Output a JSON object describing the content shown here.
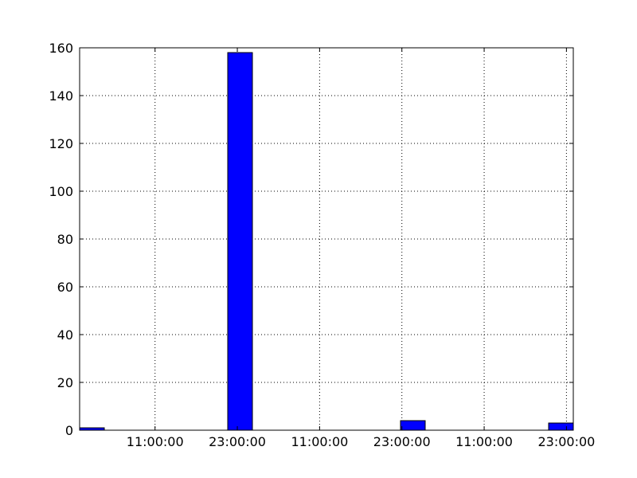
{
  "chart_data": {
    "type": "bar",
    "title": "",
    "xlabel": "",
    "ylabel": "",
    "x_tick_labels": [
      "11:00:00",
      "23:00:00",
      "11:00:00",
      "23:00:00",
      "11:00:00",
      "23:00:00"
    ],
    "y_tick_labels": [
      "0",
      "20",
      "40",
      "60",
      "80",
      "100",
      "120",
      "140",
      "160"
    ],
    "y_ticks": [
      0,
      20,
      40,
      60,
      80,
      100,
      120,
      140,
      160
    ],
    "ylim": [
      0,
      160
    ],
    "x_hours_range": [
      0,
      72
    ],
    "x_tick_hours": [
      11,
      23,
      35,
      47,
      59,
      71
    ],
    "bins": [
      {
        "start_hour": 0.0,
        "end_hour": 3.6,
        "value": 1
      },
      {
        "start_hour": 3.6,
        "end_hour": 7.2,
        "value": 0
      },
      {
        "start_hour": 7.2,
        "end_hour": 10.8,
        "value": 0
      },
      {
        "start_hour": 10.8,
        "end_hour": 14.4,
        "value": 0
      },
      {
        "start_hour": 14.4,
        "end_hour": 18.0,
        "value": 0
      },
      {
        "start_hour": 18.0,
        "end_hour": 21.6,
        "value": 0
      },
      {
        "start_hour": 21.6,
        "end_hour": 25.2,
        "value": 158
      },
      {
        "start_hour": 25.2,
        "end_hour": 28.8,
        "value": 0
      },
      {
        "start_hour": 28.8,
        "end_hour": 32.4,
        "value": 0
      },
      {
        "start_hour": 32.4,
        "end_hour": 36.0,
        "value": 0
      },
      {
        "start_hour": 36.0,
        "end_hour": 39.6,
        "value": 0
      },
      {
        "start_hour": 39.6,
        "end_hour": 43.2,
        "value": 0
      },
      {
        "start_hour": 43.2,
        "end_hour": 46.8,
        "value": 0
      },
      {
        "start_hour": 46.8,
        "end_hour": 50.4,
        "value": 4
      },
      {
        "start_hour": 50.4,
        "end_hour": 54.0,
        "value": 0
      },
      {
        "start_hour": 54.0,
        "end_hour": 57.6,
        "value": 0
      },
      {
        "start_hour": 57.6,
        "end_hour": 61.2,
        "value": 0
      },
      {
        "start_hour": 61.2,
        "end_hour": 64.8,
        "value": 0
      },
      {
        "start_hour": 64.8,
        "end_hour": 68.4,
        "value": 0
      },
      {
        "start_hour": 68.4,
        "end_hour": 72.0,
        "value": 3
      }
    ],
    "grid": true,
    "legend": "none",
    "bar_color": "#0000ff",
    "edge_color": "#000000"
  }
}
